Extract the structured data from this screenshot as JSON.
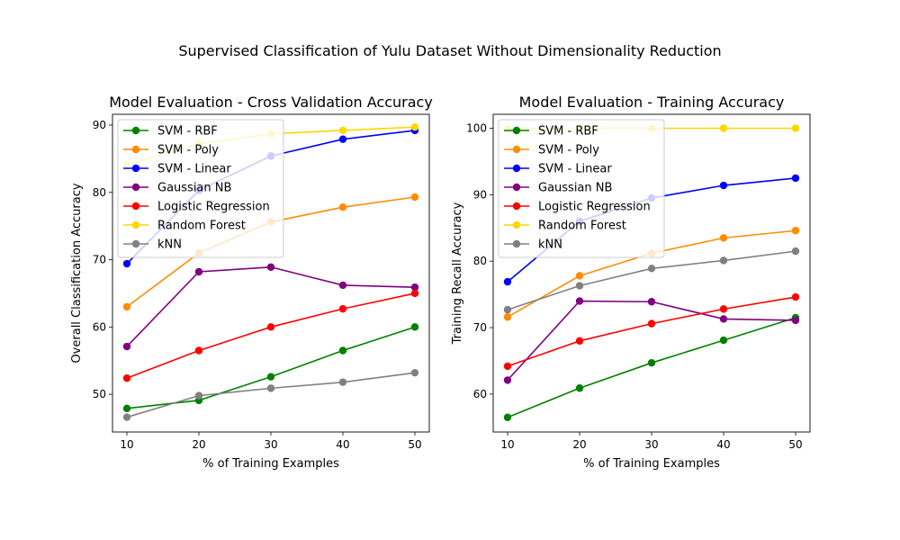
{
  "suptitle": "Supervised Classification of Yulu Dataset Without Dimensionality Reduction",
  "chart_data": [
    {
      "type": "line",
      "title": "Model Evaluation - Cross Validation Accuracy",
      "xlabel": "% of Training Examples",
      "ylabel": "Overall Classification Accuracy",
      "x": [
        10,
        20,
        30,
        40,
        50
      ],
      "xticks": [
        10,
        20,
        30,
        40,
        50
      ],
      "xlim": [
        8,
        52
      ],
      "yticks": [
        50,
        60,
        70,
        80,
        90
      ],
      "ylim": [
        44.4,
        91.6
      ],
      "legend": "upper-left",
      "grid": false,
      "series": [
        {
          "name": "SVM - RBF",
          "color": "#008000",
          "values": [
            47.9,
            49.1,
            52.6,
            56.5,
            60.0
          ]
        },
        {
          "name": "SVM - Poly",
          "color": "#ff8c00",
          "values": [
            63.0,
            71.0,
            75.6,
            77.8,
            79.3
          ]
        },
        {
          "name": "SVM - Linear",
          "color": "#0000ff",
          "values": [
            69.4,
            80.3,
            85.4,
            87.9,
            89.2
          ]
        },
        {
          "name": "Gaussian NB",
          "color": "#800080",
          "values": [
            57.1,
            68.2,
            68.9,
            66.2,
            65.9
          ]
        },
        {
          "name": "Logistic Regression",
          "color": "#ff0000",
          "values": [
            52.4,
            56.5,
            60.0,
            62.7,
            65.0
          ]
        },
        {
          "name": "Random Forest",
          "color": "#ffd700",
          "values": [
            84.1,
            87.2,
            88.7,
            89.2,
            89.7
          ]
        },
        {
          "name": "kNN",
          "color": "#808080",
          "values": [
            46.6,
            49.8,
            50.9,
            51.8,
            53.2
          ]
        }
      ]
    },
    {
      "type": "line",
      "title": "Model Evaluation - Training Accuracy",
      "xlabel": "% of Training Examples",
      "ylabel": "Training Recall Accuracy",
      "x": [
        10,
        20,
        30,
        40,
        50
      ],
      "xticks": [
        10,
        20,
        30,
        40,
        50
      ],
      "xlim": [
        8,
        52
      ],
      "yticks": [
        60,
        70,
        80,
        90,
        100
      ],
      "ylim": [
        54.3,
        102.1
      ],
      "legend": "upper-left",
      "grid": false,
      "series": [
        {
          "name": "SVM - RBF",
          "color": "#008000",
          "values": [
            56.5,
            60.9,
            64.7,
            68.1,
            71.5
          ]
        },
        {
          "name": "SVM - Poly",
          "color": "#ff8c00",
          "values": [
            71.6,
            77.8,
            81.2,
            83.5,
            84.6
          ]
        },
        {
          "name": "SVM - Linear",
          "color": "#0000ff",
          "values": [
            76.9,
            86.0,
            89.5,
            91.4,
            92.5
          ]
        },
        {
          "name": "Gaussian NB",
          "color": "#800080",
          "values": [
            62.1,
            74.0,
            73.9,
            71.3,
            71.1
          ]
        },
        {
          "name": "Logistic Regression",
          "color": "#ff0000",
          "values": [
            64.2,
            68.0,
            70.6,
            72.8,
            74.6
          ]
        },
        {
          "name": "Random Forest",
          "color": "#ffd700",
          "values": [
            99.9,
            100.0,
            100.0,
            100.0,
            100.0
          ]
        },
        {
          "name": "kNN",
          "color": "#808080",
          "values": [
            72.7,
            76.3,
            78.9,
            80.1,
            81.5
          ]
        }
      ]
    }
  ]
}
